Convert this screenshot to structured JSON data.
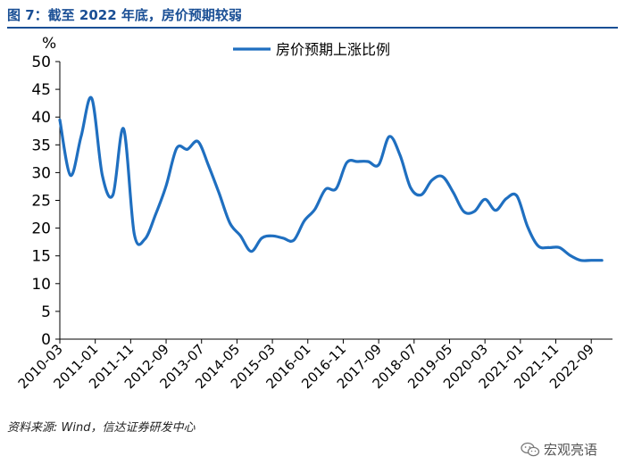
{
  "figure": {
    "title": "图 7：截至 2022 年底，房价预期较弱",
    "source": "资料来源: Wind，信达证券研发中心",
    "watermark": "宏观亮语",
    "watermark_icon": "wechat-icon"
  },
  "colors": {
    "line": "#1f6fc0",
    "title": "#1a4f95",
    "axis": "#000000"
  },
  "chart_data": {
    "type": "line",
    "title": "",
    "xlabel": "",
    "ylabel": "%",
    "ylim": [
      0,
      50
    ],
    "yticks": [
      "0",
      "5",
      "10",
      "15",
      "20",
      "25",
      "30",
      "35",
      "40",
      "45",
      "50"
    ],
    "xlim": [
      "2010-03",
      "2023-03"
    ],
    "xticks": [
      "2010-03",
      "2011-01",
      "2011-11",
      "2012-09",
      "2013-07",
      "2014-05",
      "2015-03",
      "2016-01",
      "2016-11",
      "2017-09",
      "2018-07",
      "2019-05",
      "2020-03",
      "2021-01",
      "2021-11",
      "2022-09"
    ],
    "grid": false,
    "legend": {
      "position": "top",
      "entries": [
        "房价预期上涨比例"
      ]
    },
    "series": [
      {
        "name": "房价预期上涨比例",
        "x": [
          "2010-03",
          "2010-06",
          "2010-09",
          "2010-12",
          "2011-03",
          "2011-06",
          "2011-09",
          "2011-12",
          "2012-03",
          "2012-06",
          "2012-09",
          "2012-12",
          "2013-03",
          "2013-06",
          "2013-09",
          "2013-12",
          "2014-03",
          "2014-06",
          "2014-09",
          "2014-12",
          "2015-03",
          "2015-06",
          "2015-09",
          "2015-12",
          "2016-03",
          "2016-06",
          "2016-09",
          "2016-12",
          "2017-03",
          "2017-06",
          "2017-09",
          "2017-12",
          "2018-03",
          "2018-06",
          "2018-09",
          "2018-12",
          "2019-03",
          "2019-06",
          "2019-09",
          "2019-12",
          "2020-03",
          "2020-06",
          "2020-09",
          "2020-12",
          "2021-03",
          "2021-06",
          "2021-09",
          "2021-12",
          "2022-03",
          "2022-06",
          "2022-09",
          "2022-12"
        ],
        "values": [
          39.5,
          29.5,
          36.5,
          43.4,
          29.5,
          26.0,
          37.9,
          19.0,
          18.0,
          22.4,
          27.6,
          34.4,
          34.2,
          35.6,
          31.2,
          26.2,
          20.9,
          18.6,
          15.8,
          18.2,
          18.6,
          18.2,
          17.8,
          21.3,
          23.4,
          27.0,
          27.1,
          31.8,
          32.0,
          32.0,
          31.4,
          36.5,
          33.2,
          27.3,
          26.0,
          28.6,
          29.3,
          26.5,
          23.0,
          23.0,
          25.2,
          23.2,
          25.3,
          25.8,
          20.3,
          16.8,
          16.5,
          16.5,
          15.1,
          14.2,
          14.2,
          14.2
        ]
      }
    ]
  }
}
